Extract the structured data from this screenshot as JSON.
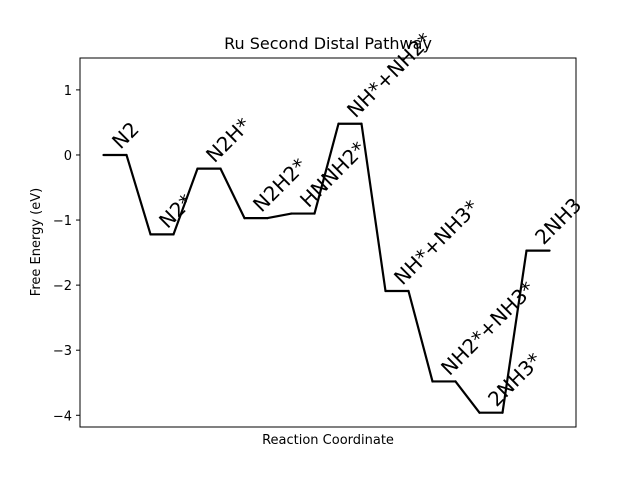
{
  "chart_data": {
    "type": "line",
    "title": "Ru Second Distal Pathway",
    "xlabel": "Reaction Coordinate",
    "ylabel": "Free Energy (eV)",
    "ylim": [
      -4.18,
      1.49
    ],
    "yticks": [
      1,
      0,
      -1,
      -2,
      -3,
      -4
    ],
    "ytick_labels": [
      "1",
      "0",
      "−1",
      "−2",
      "−3",
      "−4"
    ],
    "xticks_shown": false,
    "grid": false,
    "legend": "none",
    "line_color": "#000000",
    "steps": [
      {
        "label": "N2",
        "energy": 0.0
      },
      {
        "label": "N2*",
        "energy": -1.22
      },
      {
        "label": "N2H*",
        "energy": -0.21
      },
      {
        "label": "N2H2*",
        "energy": -0.97
      },
      {
        "label": "HNNH2*",
        "energy": -0.9
      },
      {
        "label": "NH*+NH2*",
        "energy": 0.48
      },
      {
        "label": "NH*+NH3*",
        "energy": -2.09
      },
      {
        "label": "NH2*+NH3*",
        "energy": -3.48
      },
      {
        "label": "2NH3*",
        "energy": -3.96
      },
      {
        "label": "2NH3",
        "energy": -1.47
      }
    ]
  }
}
